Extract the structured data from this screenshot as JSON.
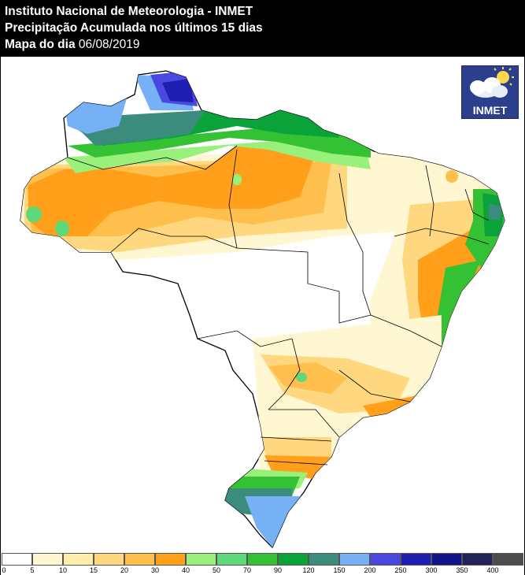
{
  "header": {
    "line1": "Instituto Nacional de Meteorologia - INMET",
    "line2": "Precipitação Acumulada nos últimos 15 dias",
    "line3_label": "Mapa do dia",
    "line3_date": "06/08/2019"
  },
  "logo": {
    "text": "INMET",
    "icon": "cloud-sun-icon"
  },
  "legend": {
    "bins": [
      {
        "label": "0",
        "color": "#ffffff"
      },
      {
        "label": "5",
        "color": "#fff7d1"
      },
      {
        "label": "10",
        "color": "#ffeeab"
      },
      {
        "label": "15",
        "color": "#ffd77f"
      },
      {
        "label": "20",
        "color": "#ffbf4d"
      },
      {
        "label": "30",
        "color": "#ff9f1a"
      },
      {
        "label": "40",
        "color": "#99f07a"
      },
      {
        "label": "50",
        "color": "#5dd97a"
      },
      {
        "label": "70",
        "color": "#34c234"
      },
      {
        "label": "90",
        "color": "#0aa33a"
      },
      {
        "label": "120",
        "color": "#3c8c7e"
      },
      {
        "label": "150",
        "color": "#76b0f5"
      },
      {
        "label": "200",
        "color": "#4a48e0"
      },
      {
        "label": "250",
        "color": "#1f1fb2"
      },
      {
        "label": "300",
        "color": "#14148a"
      },
      {
        "label": "350",
        "color": "#23235c"
      },
      {
        "label": "400",
        "color": "#4d4d4d"
      }
    ]
  }
}
